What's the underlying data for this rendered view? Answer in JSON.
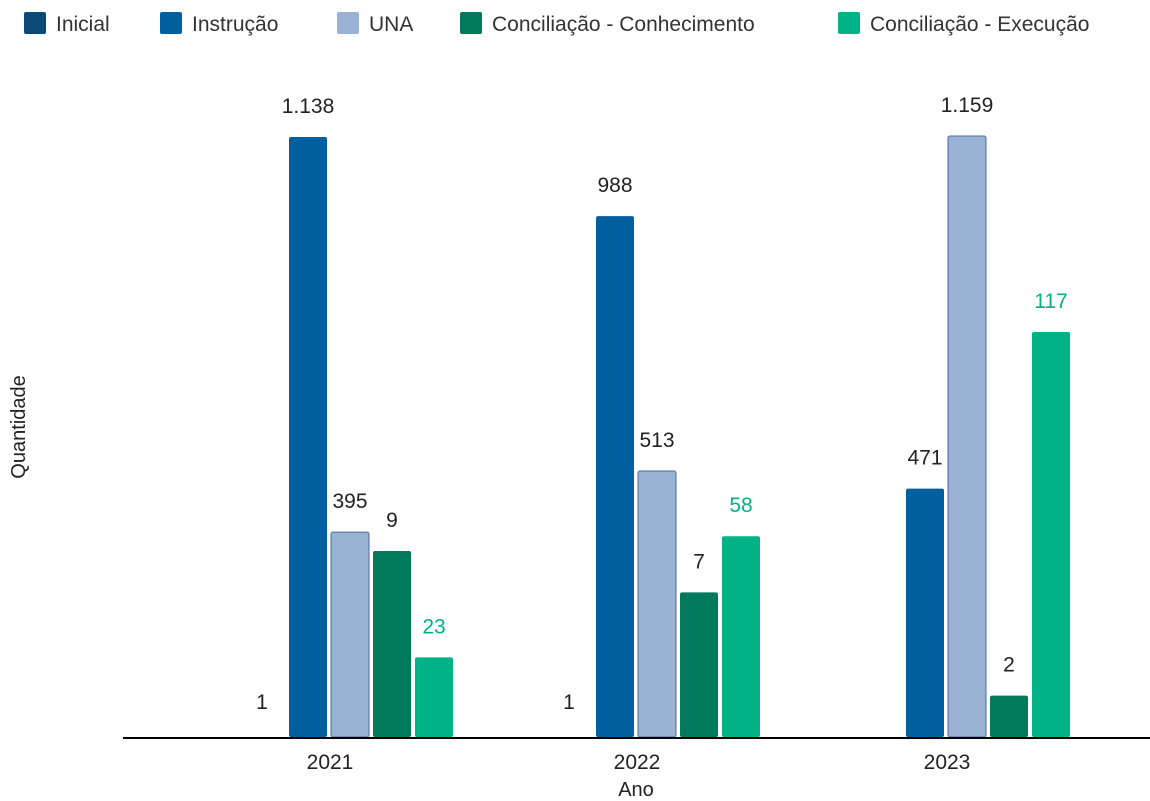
{
  "chart_data": {
    "type": "bar",
    "title": "",
    "xlabel": "Ano",
    "ylabel": "Quantidade",
    "categories": [
      "2021",
      "2022",
      "2023"
    ],
    "series": [
      {
        "name": "Inicial",
        "color": "#0b4a77",
        "values": [
          1,
          1,
          null
        ],
        "labels": [
          "1",
          "1",
          ""
        ]
      },
      {
        "name": "Instrução",
        "color": "#005f9e",
        "values": [
          1138,
          988,
          471
        ],
        "labels": [
          "1.138",
          "988",
          "471"
        ]
      },
      {
        "name": "UNA",
        "color": "#9ab3d5",
        "values": [
          395,
          513,
          1159
        ],
        "labels": [
          "395",
          "513",
          "1.159"
        ]
      },
      {
        "name": "Conciliação - Conhecimento",
        "color": "#007a5c",
        "values": [
          9,
          7,
          2
        ],
        "labels": [
          "9",
          "7",
          "2"
        ]
      },
      {
        "name": "Conciliação - Execução",
        "color": "#00b386",
        "values": [
          23,
          58,
          117
        ],
        "labels": [
          "23",
          "58",
          "117"
        ]
      }
    ],
    "legend_position": "top",
    "grid": false
  }
}
